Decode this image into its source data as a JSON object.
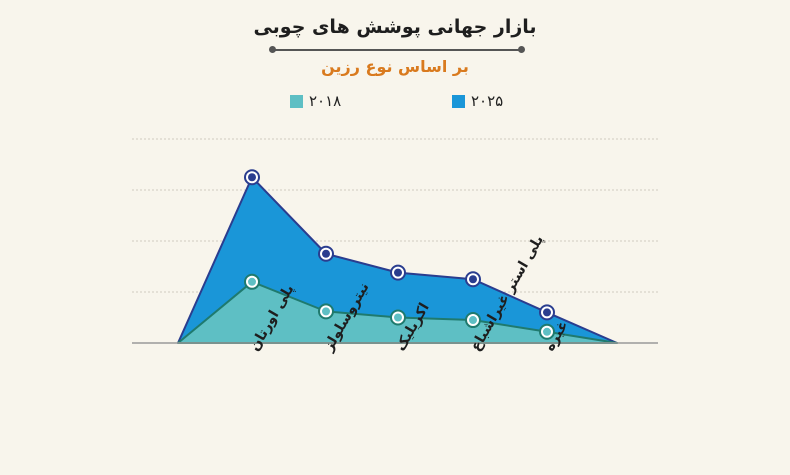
{
  "chart_data": {
    "type": "area",
    "title": "بازار جهانی پوشش های چوبی",
    "subtitle": "بر اساس نوع رزین",
    "categories": [
      "پلی اورتان",
      "نیتروسلولز",
      "اکریلیک",
      "پلی استر غیراشباع",
      "غیره"
    ],
    "series": [
      {
        "name": "۲۰۲۵",
        "values": [
          3.25,
          1.75,
          1.38,
          1.25,
          0.6
        ],
        "color": "#1a96d8",
        "stroke": "#2a3d8f"
      },
      {
        "name": "۲۰۱۸",
        "values": [
          1.2,
          0.62,
          0.5,
          0.45,
          0.22
        ],
        "color": "#5ebfc4",
        "stroke": "#1f7a6e"
      }
    ],
    "ylim": [
      0,
      4
    ],
    "grid": true,
    "legend_position": "top"
  }
}
